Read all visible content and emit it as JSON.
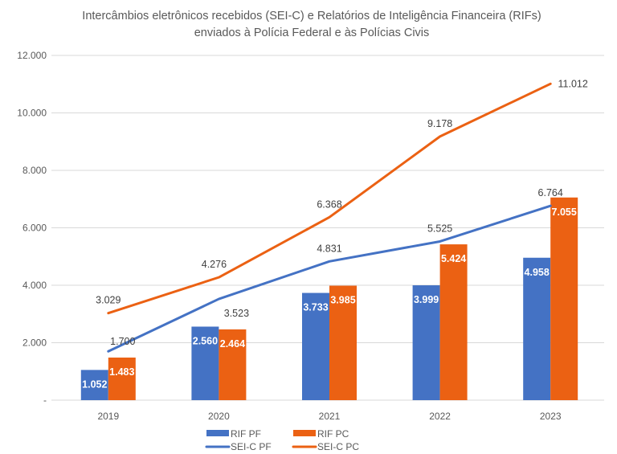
{
  "chart_data": {
    "type": "bar",
    "title": "Intercâmbios eletrônicos recebidos (SEI-C) e Relatórios de Inteligência Financeira (RIFs) enviados à Polícia Federal e às Polícias Civis",
    "title_lines": [
      "Intercâmbios eletrônicos recebidos (SEI-C) e Relatórios de Inteligência Financeira (RIFs)",
      "enviados à Polícia Federal e às Polícias Civis"
    ],
    "xlabel": "",
    "ylabel": "",
    "ylim": [
      0,
      12000
    ],
    "yticks": [
      0,
      2000,
      4000,
      6000,
      8000,
      10000,
      12000
    ],
    "ytick_labels": [
      "-",
      "2.000",
      "4.000",
      "6.000",
      "8.000",
      "10.000",
      "12.000"
    ],
    "grid": true,
    "legend_position": "bottom",
    "categories": [
      "2019",
      "2020",
      "2021",
      "2022",
      "2023"
    ],
    "series": [
      {
        "name": "RIF PF",
        "kind": "bar",
        "color": "#4472C4",
        "values": [
          1052,
          2560,
          3733,
          3999,
          4958
        ],
        "labels": [
          "1.052",
          "2.560",
          "3.733",
          "3.999",
          "4.958"
        ]
      },
      {
        "name": "RIF PC",
        "kind": "bar",
        "color": "#EB6113",
        "values": [
          1483,
          2464,
          3985,
          5424,
          7055
        ],
        "labels": [
          "1.483",
          "2.464",
          "3.985",
          "5.424",
          "7.055"
        ]
      },
      {
        "name": "SEI-C PF",
        "kind": "line",
        "color": "#4472C4",
        "values": [
          1700,
          3523,
          4831,
          5525,
          6764
        ],
        "labels": [
          "1.700",
          "3.523",
          "4.831",
          "5.525",
          "6.764"
        ]
      },
      {
        "name": "SEI-C PC",
        "kind": "line",
        "color": "#EB6113",
        "values": [
          3029,
          4276,
          6368,
          9178,
          11012
        ],
        "labels": [
          "3.029",
          "4.276",
          "6.368",
          "9.178",
          "11.012"
        ]
      }
    ]
  }
}
